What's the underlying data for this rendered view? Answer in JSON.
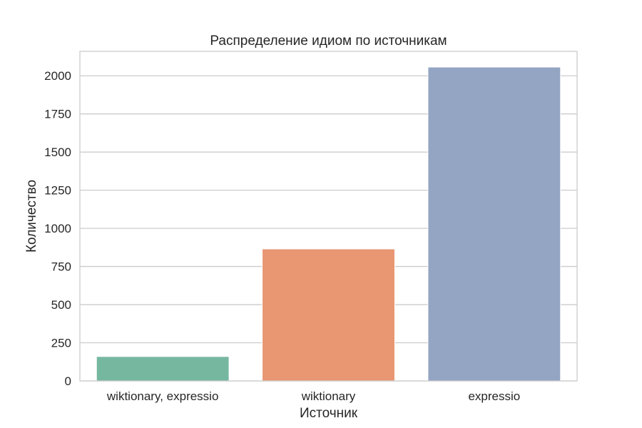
{
  "chart_data": {
    "type": "bar",
    "title": "Распределение идиом по источникам",
    "xlabel": "Источник",
    "ylabel": "Количество",
    "categories": [
      "wiktionary, expressio",
      "wiktionary",
      "expressio"
    ],
    "values": [
      160,
      865,
      2057
    ],
    "colors": [
      "#76b7a0",
      "#e99672",
      "#94a5c3"
    ],
    "ylim": [
      0,
      2160
    ],
    "yticks": [
      0,
      250,
      500,
      750,
      1000,
      1250,
      1500,
      1750,
      2000
    ],
    "grid": true,
    "grid_color": "#cccccc",
    "axes_edge_color": "#cccccc"
  }
}
